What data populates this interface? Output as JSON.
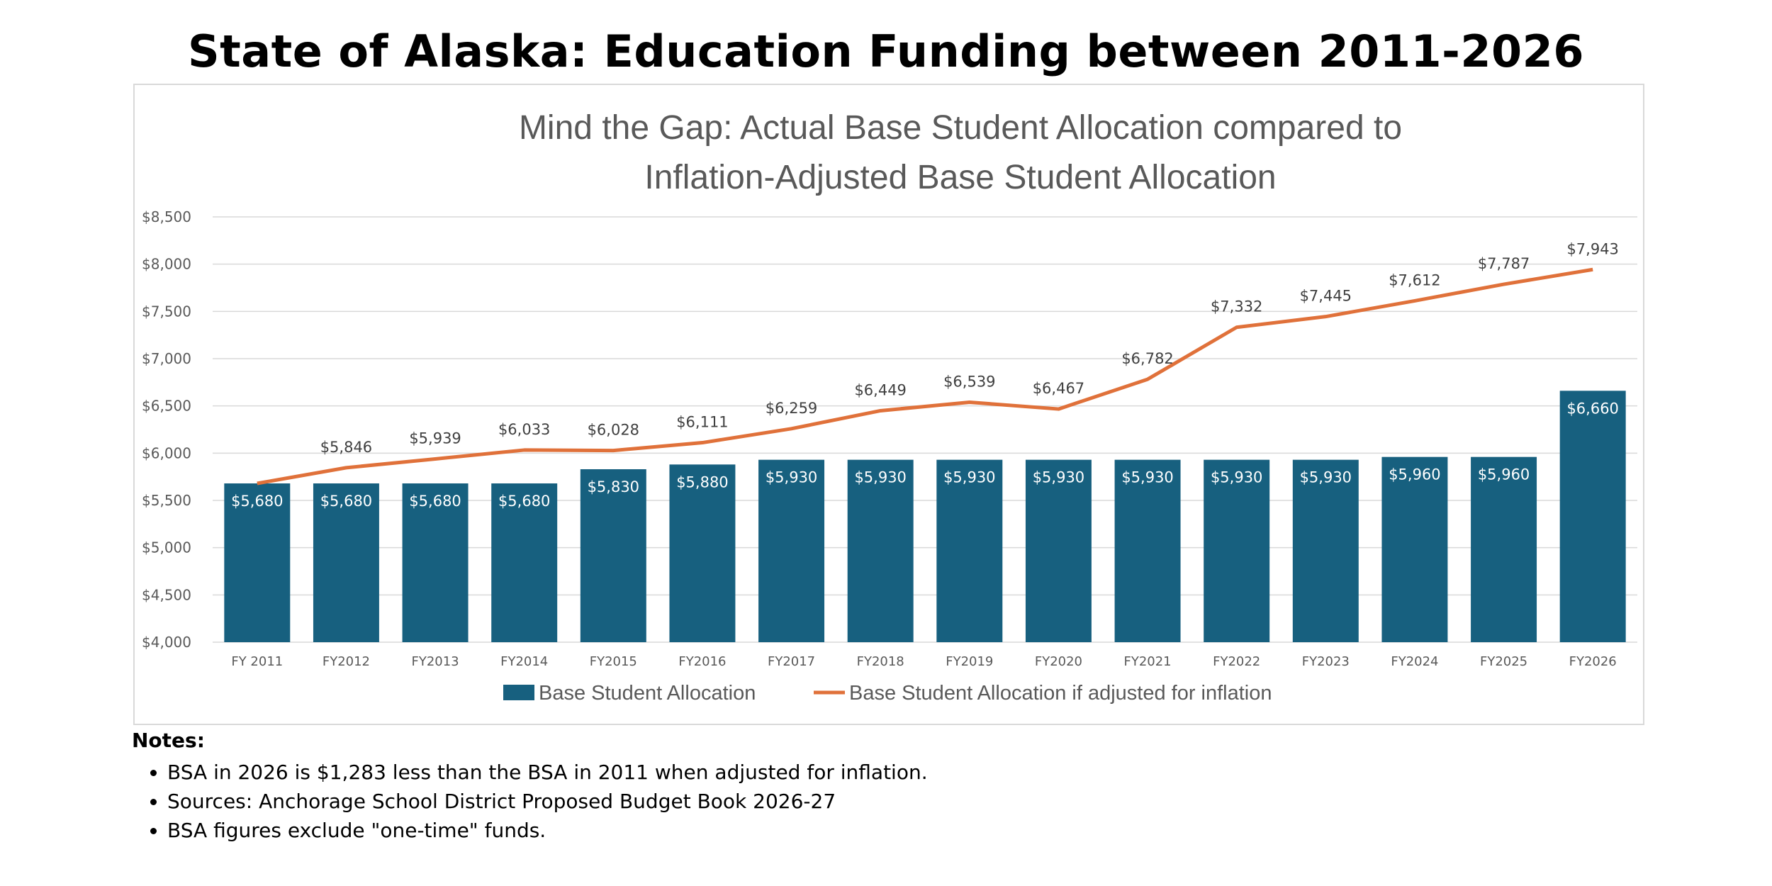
{
  "header": {
    "title": "State of Alaska: Education Funding between 2011-2026"
  },
  "chart_data": {
    "type": "bar",
    "title": "Mind the Gap: Actual Base Student Allocation compared to Inflation-Adjusted Base Student Allocation",
    "title_lines": [
      "Mind the Gap: Actual Base Student Allocation compared to",
      "Inflation-Adjusted Base Student Allocation"
    ],
    "xlabel": "",
    "ylabel": "",
    "ylim": [
      4000,
      8500
    ],
    "yticks": [
      4000,
      4500,
      5000,
      5500,
      6000,
      6500,
      7000,
      7500,
      8000,
      8500
    ],
    "ytick_labels": [
      "$4,000",
      "$4,500",
      "$5,000",
      "$5,500",
      "$6,000",
      "$6,500",
      "$7,000",
      "$7,500",
      "$8,000",
      "$8,500"
    ],
    "grid": true,
    "legend_position": "bottom",
    "categories": [
      "FY 2011",
      "FY2012",
      "FY2013",
      "FY2014",
      "FY2015",
      "FY2016",
      "FY2017",
      "FY2018",
      "FY2019",
      "FY2020",
      "FY2021",
      "FY2022",
      "FY2023",
      "FY2024",
      "FY2025",
      "FY2026"
    ],
    "series": [
      {
        "name": "Base Student Allocation",
        "type": "bar",
        "color": "#17607f",
        "values": [
          5680,
          5680,
          5680,
          5680,
          5830,
          5880,
          5930,
          5930,
          5930,
          5930,
          5930,
          5930,
          5930,
          5960,
          5960,
          6660
        ],
        "labels": [
          "$5,680",
          "$5,680",
          "$5,680",
          "$5,680",
          "$5,830",
          "$5,880",
          "$5,930",
          "$5,930",
          "$5,930",
          "$5,930",
          "$5,930",
          "$5,930",
          "$5,930",
          "$5,960",
          "$5,960",
          "$6,660"
        ]
      },
      {
        "name": "Base Student Allocation if adjusted for inflation",
        "type": "line",
        "color": "#e0713a",
        "values": [
          5680,
          5846,
          5939,
          6033,
          6028,
          6111,
          6259,
          6449,
          6539,
          6467,
          6782,
          7332,
          7445,
          7612,
          7787,
          7943
        ],
        "labels": [
          "",
          "$5,846",
          "$5,939",
          "$6,033",
          "$6,028",
          "$6,111",
          "$6,259",
          "$6,449",
          "$6,539",
          "$6,467",
          "$6,782",
          "$7,332",
          "$7,445",
          "$7,612",
          "$7,787",
          "$7,943"
        ]
      }
    ]
  },
  "notes": {
    "title": "Notes:",
    "items": [
      "BSA in 2026 is $1,283 less than the BSA in 2011 when adjusted for inflation.",
      "Sources: Anchorage School District Proposed Budget Book 2026-27",
      "BSA figures exclude \"one-time\" funds."
    ]
  }
}
